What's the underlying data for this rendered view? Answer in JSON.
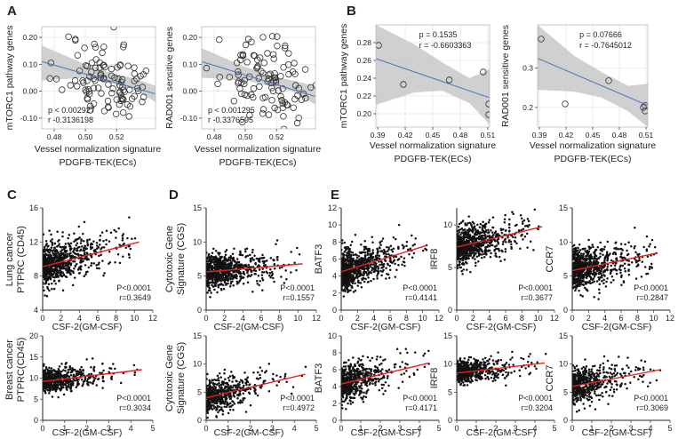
{
  "panels": [
    {
      "letter": "A"
    },
    {
      "letter": "B"
    },
    {
      "letter": "C"
    },
    {
      "letter": "D"
    },
    {
      "letter": "E"
    }
  ],
  "shared": {
    "ab_xlabel_line1": "Vessel normalization signature",
    "ab_xlabel_line2": "PDGFB-TEK(ECs)",
    "csf_xlabel": "CSF-2(GM-CSF)"
  },
  "side_labels": {
    "lung": [
      "Lung cancer",
      "PTPRC (CD45)"
    ],
    "breast": [
      "Breast cancer",
      "PTPRC(CD45)"
    ]
  },
  "colors": {
    "trend_ab": "#4a72c4",
    "trend_cde": "#e8201f",
    "ci_band": "#c8c8c8",
    "points": "#111111"
  },
  "chart_data": [
    {
      "id": "A1",
      "type": "scatter",
      "style": "ab",
      "marker": "open",
      "ylabel": "mTORC1 pathway genes",
      "xlim": [
        0.472,
        0.545
      ],
      "ylim": [
        -0.14,
        0.24
      ],
      "xticks": [
        0.48,
        0.5,
        0.52
      ],
      "xtick_labels": [
        "0.48",
        "0.50",
        "0.52"
      ],
      "yticks": [
        -0.1,
        0.0,
        0.1,
        0.2
      ],
      "ytick_labels": [
        "-0.10",
        "0.00",
        "0.10",
        "0.20"
      ],
      "stats": [
        "p < 0.002927",
        "r -0.3136198"
      ],
      "stats_pos": "bottom-left",
      "fit": {
        "x": [
          0.472,
          0.545
        ],
        "y": [
          0.11,
          -0.01
        ]
      },
      "band": {
        "x": [
          0.472,
          0.5,
          0.515,
          0.53,
          0.545
        ],
        "lo": [
          0.04,
          0.05,
          0.03,
          0.01,
          -0.04
        ],
        "hi": [
          0.17,
          0.1,
          0.07,
          0.05,
          0.02
        ]
      },
      "n": 110,
      "x_center": 0.515,
      "x_spread": 0.015,
      "noise": 0.075,
      "seed": 11
    },
    {
      "id": "A2",
      "type": "scatter",
      "style": "ab",
      "marker": "open",
      "ylabel": "RAD001 sensitive genes",
      "xlim": [
        0.472,
        0.545
      ],
      "ylim": [
        -0.14,
        0.24
      ],
      "xticks": [
        0.48,
        0.5,
        0.52
      ],
      "xtick_labels": [
        "0.48",
        "0.50",
        "0.52"
      ],
      "yticks": [
        -0.1,
        0.0,
        0.1,
        0.2
      ],
      "ytick_labels": [
        "-0.10",
        "0.00",
        "0.10",
        "0.20"
      ],
      "stats": [
        "p < 0.001295",
        "r -0.3376595"
      ],
      "stats_pos": "bottom-left",
      "fit": {
        "x": [
          0.472,
          0.545
        ],
        "y": [
          0.11,
          -0.02
        ]
      },
      "band": {
        "x": [
          0.472,
          0.5,
          0.515,
          0.53,
          0.545
        ],
        "lo": [
          0.05,
          0.04,
          0.02,
          0.0,
          -0.05
        ],
        "hi": [
          0.16,
          0.09,
          0.06,
          0.04,
          0.02
        ]
      },
      "n": 110,
      "x_center": 0.513,
      "x_spread": 0.014,
      "noise": 0.07,
      "seed": 23
    },
    {
      "id": "B1",
      "type": "scatter",
      "style": "ab",
      "marker": "open",
      "ylabel": "mTORC1 pathway genes",
      "xlim": [
        0.388,
        0.512
      ],
      "ylim": [
        0.185,
        0.3
      ],
      "xticks": [
        0.39,
        0.42,
        0.45,
        0.48,
        0.51
      ],
      "xtick_labels": [
        "0.39",
        "0.42",
        "0.45",
        "0.48",
        "0.51"
      ],
      "yticks": [
        0.2,
        0.22,
        0.24,
        0.26,
        0.28
      ],
      "ytick_labels": [
        "0.20",
        "0.22",
        "0.24",
        "0.26",
        "0.28"
      ],
      "stats": [
        "p = 0.1535",
        "r = -0.6603363"
      ],
      "stats_pos": "top-center",
      "fit": {
        "x": [
          0.388,
          0.512
        ],
        "y": [
          0.262,
          0.218
        ]
      },
      "band": {
        "x": [
          0.388,
          0.43,
          0.46,
          0.49,
          0.512
        ],
        "lo": [
          0.21,
          0.224,
          0.226,
          0.212,
          0.188
        ],
        "hi": [
          0.3,
          0.278,
          0.258,
          0.24,
          0.25
        ]
      },
      "points": [
        [
          0.391,
          0.277
        ],
        [
          0.418,
          0.233
        ],
        [
          0.468,
          0.238
        ],
        [
          0.505,
          0.247
        ],
        [
          0.511,
          0.211
        ],
        [
          0.511,
          0.199
        ]
      ]
    },
    {
      "id": "B2",
      "type": "scatter",
      "style": "ab",
      "marker": "open",
      "ylabel": "RAD001 sensitive genes",
      "xlim": [
        0.388,
        0.512
      ],
      "ylim": [
        0.15,
        0.41
      ],
      "xticks": [
        0.39,
        0.42,
        0.45,
        0.48,
        0.51
      ],
      "xtick_labels": [
        "0.39",
        "0.42",
        "0.45",
        "0.48",
        "0.51"
      ],
      "yticks": [
        0.2,
        0.3
      ],
      "ytick_labels": [
        "0.2",
        "0.3"
      ],
      "stats": [
        "p = 0.07666",
        "r = -0.7645012"
      ],
      "stats_pos": "top-center",
      "fit": {
        "x": [
          0.388,
          0.512
        ],
        "y": [
          0.325,
          0.205
        ]
      },
      "band": {
        "x": [
          0.388,
          0.43,
          0.46,
          0.49,
          0.512
        ],
        "lo": [
          0.245,
          0.24,
          0.225,
          0.19,
          0.15
        ],
        "hi": [
          0.41,
          0.33,
          0.29,
          0.255,
          0.26
        ]
      },
      "points": [
        [
          0.392,
          0.374
        ],
        [
          0.419,
          0.209
        ],
        [
          0.468,
          0.268
        ],
        [
          0.507,
          0.2
        ],
        [
          0.509,
          0.191
        ],
        [
          0.509,
          0.205
        ]
      ]
    },
    {
      "id": "C1",
      "type": "scatter",
      "style": "cde",
      "marker": "dot",
      "ylabel": "",
      "xlim": [
        0,
        12
      ],
      "ylim": [
        4,
        16
      ],
      "xticks": [
        0,
        2,
        4,
        6,
        8,
        10,
        12
      ],
      "xtick_labels": [
        "0",
        "2",
        "4",
        "6",
        "8",
        "10",
        "12"
      ],
      "yticks": [
        4,
        8,
        12,
        16
      ],
      "ytick_labels": [
        "4",
        "8",
        "12",
        "16"
      ],
      "stats": [
        "P<0.0001",
        "r=0.3649"
      ],
      "stats_pos": "bottom-right",
      "fit": {
        "x": [
          0,
          10.5
        ],
        "y": [
          9.1,
          12.0
        ]
      },
      "dist": "exp",
      "xmean": 2.5,
      "xmax": 10.5,
      "noise": 1.2,
      "n": 750,
      "seed": 3
    },
    {
      "id": "C2",
      "type": "scatter",
      "style": "cde",
      "marker": "dot",
      "ylabel": "",
      "xlim": [
        0,
        5
      ],
      "ylim": [
        0,
        20
      ],
      "xticks": [
        0,
        1,
        2,
        3,
        4,
        5
      ],
      "xtick_labels": [
        "0",
        "1",
        "2",
        "3",
        "4",
        "5"
      ],
      "yticks": [
        0,
        5,
        10,
        15,
        20
      ],
      "ytick_labels": [
        "0",
        "5",
        "10",
        "15",
        "20"
      ],
      "stats": [
        "P<0.0001",
        "r=0.3034"
      ],
      "stats_pos": "bottom-right",
      "fit": {
        "x": [
          0,
          4.5
        ],
        "y": [
          9.2,
          12.0
        ]
      },
      "dist": "exp",
      "xmean": 0.9,
      "xmax": 4.6,
      "noise": 1.3,
      "n": 550,
      "seed": 7
    },
    {
      "id": "D1",
      "type": "scatter",
      "style": "cde",
      "marker": "dot",
      "ylabel": "Cytotoxic Gene Signature (CGS)",
      "xlim": [
        0,
        12
      ],
      "ylim": [
        0,
        15
      ],
      "xticks": [
        0,
        2,
        4,
        6,
        8,
        10,
        12
      ],
      "xtick_labels": [
        "0",
        "2",
        "4",
        "6",
        "8",
        "10",
        "12"
      ],
      "yticks": [
        0,
        5,
        10,
        15
      ],
      "ytick_labels": [
        "0",
        "5",
        "10",
        "15"
      ],
      "stats": [
        "P<0.0001",
        "r=0.1557"
      ],
      "stats_pos": "bottom-right",
      "fit": {
        "x": [
          0,
          10.5
        ],
        "y": [
          5.6,
          6.8
        ]
      },
      "dist": "exp",
      "xmean": 2.5,
      "xmax": 10.5,
      "noise": 1.2,
      "n": 750,
      "seed": 13
    },
    {
      "id": "D2",
      "type": "scatter",
      "style": "cde",
      "marker": "dot",
      "ylabel": "Cytotoxic Gene Signature (CGS)",
      "xlim": [
        0,
        5
      ],
      "ylim": [
        0,
        15
      ],
      "xticks": [
        0,
        1,
        2,
        3,
        4,
        5
      ],
      "xtick_labels": [
        "0",
        "1",
        "2",
        "3",
        "4",
        "5"
      ],
      "yticks": [
        0,
        5,
        10,
        15
      ],
      "ytick_labels": [
        "0",
        "5",
        "10",
        "15"
      ],
      "stats": [
        "P<0.0001",
        "r=0.4972"
      ],
      "stats_pos": "bottom-right",
      "fit": {
        "x": [
          0,
          4.5
        ],
        "y": [
          4.0,
          8.2
        ]
      },
      "dist": "exp",
      "xmean": 0.9,
      "xmax": 4.6,
      "noise": 1.4,
      "n": 550,
      "seed": 17
    },
    {
      "id": "E1",
      "type": "scatter",
      "style": "cde",
      "marker": "dot",
      "ylabel": "BATF3",
      "xlim": [
        0,
        12
      ],
      "ylim": [
        0,
        12
      ],
      "xticks": [
        0,
        2,
        4,
        6,
        8,
        10,
        12
      ],
      "xtick_labels": [
        "0",
        "2",
        "4",
        "6",
        "8",
        "10",
        "12"
      ],
      "yticks": [
        0,
        2,
        4,
        6,
        8,
        10,
        12
      ],
      "ytick_labels": [
        "0",
        "2",
        "4",
        "6",
        "8",
        "10",
        "12"
      ],
      "stats": [
        "P<0.0001",
        "r=0.4141"
      ],
      "stats_pos": "bottom-right",
      "fit": {
        "x": [
          0,
          10.5
        ],
        "y": [
          4.5,
          7.6
        ]
      },
      "dist": "exp",
      "xmean": 2.5,
      "xmax": 10.5,
      "noise": 1.2,
      "n": 750,
      "seed": 19
    },
    {
      "id": "E2",
      "type": "scatter",
      "style": "cde",
      "marker": "dot",
      "ylabel": "IRF8",
      "xlim": [
        0,
        12
      ],
      "ylim": [
        0,
        12
      ],
      "xticks": [
        0,
        2,
        4,
        6,
        8,
        10,
        12
      ],
      "xtick_labels": [
        "0",
        "2",
        "4",
        "6",
        "8",
        "10",
        "12"
      ],
      "yticks": [
        0,
        5,
        10
      ],
      "ytick_labels": [
        "0",
        "5",
        "10"
      ],
      "stats": [
        "P<0.0001",
        "r=0.3677"
      ],
      "stats_pos": "bottom-right",
      "fit": {
        "x": [
          0,
          10.5
        ],
        "y": [
          7.4,
          9.8
        ]
      },
      "dist": "exp",
      "xmean": 2.5,
      "xmax": 10.5,
      "noise": 1.1,
      "n": 750,
      "seed": 29
    },
    {
      "id": "E3",
      "type": "scatter",
      "style": "cde",
      "marker": "dot",
      "ylabel": "CCR7",
      "xlim": [
        0,
        12
      ],
      "ylim": [
        0,
        15
      ],
      "xticks": [
        0,
        2,
        4,
        6,
        8,
        10,
        12
      ],
      "xtick_labels": [
        "0",
        "2",
        "4",
        "6",
        "8",
        "10",
        "12"
      ],
      "yticks": [
        0,
        5,
        10,
        15
      ],
      "ytick_labels": [
        "0",
        "5",
        "10",
        "15"
      ],
      "stats": [
        "P<0.0001",
        "r=0.2847"
      ],
      "stats_pos": "bottom-right",
      "fit": {
        "x": [
          0,
          10.5
        ],
        "y": [
          5.8,
          8.4
        ]
      },
      "dist": "exp",
      "xmean": 2.5,
      "xmax": 10.5,
      "noise": 1.5,
      "n": 750,
      "seed": 31
    },
    {
      "id": "E4",
      "type": "scatter",
      "style": "cde",
      "marker": "dot",
      "ylabel": "BATF3",
      "xlim": [
        0,
        5
      ],
      "ylim": [
        0,
        10
      ],
      "xticks": [
        0,
        1,
        2,
        3,
        4,
        5
      ],
      "xtick_labels": [
        "0",
        "1",
        "2",
        "3",
        "4",
        "5"
      ],
      "yticks": [
        0,
        2,
        4,
        6,
        8,
        10
      ],
      "ytick_labels": [
        "0",
        "2",
        "4",
        "6",
        "8",
        "10"
      ],
      "stats": [
        "P<0.0001",
        "r=0.4171"
      ],
      "stats_pos": "bottom-right",
      "fit": {
        "x": [
          0,
          4.5
        ],
        "y": [
          4.3,
          6.8
        ]
      },
      "dist": "exp",
      "xmean": 0.9,
      "xmax": 4.6,
      "noise": 1.1,
      "n": 550,
      "seed": 37
    },
    {
      "id": "E5",
      "type": "scatter",
      "style": "cde",
      "marker": "dot",
      "ylabel": "IRF8",
      "xlim": [
        0,
        5
      ],
      "ylim": [
        0,
        15
      ],
      "xticks": [
        0,
        1,
        2,
        3,
        4,
        5
      ],
      "xtick_labels": [
        "0",
        "1",
        "2",
        "3",
        "4",
        "5"
      ],
      "yticks": [
        0,
        5,
        10,
        15
      ],
      "ytick_labels": [
        "0",
        "5",
        "10",
        "15"
      ],
      "stats": [
        "P<0.0001",
        "r=0.3204"
      ],
      "stats_pos": "bottom-right",
      "fit": {
        "x": [
          0,
          4.5
        ],
        "y": [
          8.4,
          10.2
        ]
      },
      "dist": "exp",
      "xmean": 0.9,
      "xmax": 4.6,
      "noise": 1.0,
      "n": 550,
      "seed": 41
    },
    {
      "id": "E6",
      "type": "scatter",
      "style": "cde",
      "marker": "dot",
      "ylabel": "CCR7",
      "xlim": [
        0,
        5
      ],
      "ylim": [
        0,
        15
      ],
      "xticks": [
        0,
        1,
        2,
        3,
        4,
        5
      ],
      "xtick_labels": [
        "0",
        "1",
        "2",
        "3",
        "4",
        "5"
      ],
      "yticks": [
        0,
        5,
        10,
        15
      ],
      "ytick_labels": [
        "0",
        "5",
        "10",
        "15"
      ],
      "stats": [
        "P<0.0001",
        "r=0.3069"
      ],
      "stats_pos": "bottom-right",
      "fit": {
        "x": [
          0,
          4.5
        ],
        "y": [
          6.0,
          9.0
        ]
      },
      "dist": "exp",
      "xmean": 0.9,
      "xmax": 4.6,
      "noise": 1.5,
      "n": 550,
      "seed": 43
    }
  ]
}
